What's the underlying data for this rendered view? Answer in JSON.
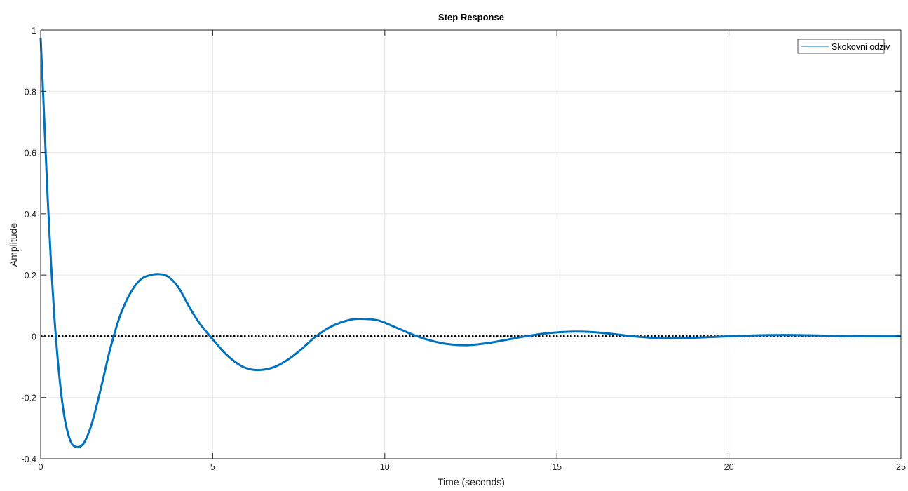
{
  "chart_data": {
    "type": "line",
    "title": "Step Response",
    "xlabel": "Time (seconds)",
    "ylabel": "Amplitude",
    "xlim": [
      0,
      25
    ],
    "ylim": [
      -0.4,
      1
    ],
    "xticks": [
      0,
      5,
      10,
      15,
      20,
      25
    ],
    "xtick_labels": [
      "0",
      "5",
      "10",
      "15",
      "20",
      "25"
    ],
    "yticks": [
      -0.4,
      -0.2,
      0,
      0.2,
      0.4,
      0.6,
      0.8,
      1
    ],
    "ytick_labels": [
      "-0.4",
      "-0.2",
      "0",
      "0.2",
      "0.4",
      "0.6",
      "0.8",
      "1"
    ],
    "grid": true,
    "legend_position": "top-right",
    "series": [
      {
        "name": "Skokovni odziv",
        "color": "#0072BD",
        "x": [
          0,
          0.1,
          0.2,
          0.3,
          0.4,
          0.5,
          0.6,
          0.7,
          0.8,
          0.9,
          1.0,
          1.15,
          1.3,
          1.5,
          1.75,
          2.0,
          2.2,
          2.35,
          2.6,
          2.9,
          3.2,
          3.45,
          3.7,
          4.0,
          4.3,
          4.6,
          5.0,
          5.4,
          5.8,
          6.1,
          6.4,
          6.8,
          7.2,
          7.6,
          8.0,
          8.5,
          9.0,
          9.35,
          9.8,
          10.3,
          10.8,
          11.3,
          11.8,
          12.4,
          13.0,
          13.6,
          14.2,
          14.8,
          15.4,
          16.0,
          16.6,
          17.2,
          17.8,
          18.5,
          19.2,
          20.0,
          20.8,
          21.6,
          22.4,
          23.2,
          24.0,
          25.0
        ],
        "y": [
          0.975,
          0.72,
          0.46,
          0.24,
          0.06,
          -0.08,
          -0.19,
          -0.27,
          -0.32,
          -0.35,
          -0.36,
          -0.36,
          -0.34,
          -0.28,
          -0.17,
          -0.05,
          0.03,
          0.08,
          0.14,
          0.185,
          0.2,
          0.203,
          0.195,
          0.16,
          0.1,
          0.045,
          -0.01,
          -0.06,
          -0.095,
          -0.108,
          -0.11,
          -0.1,
          -0.075,
          -0.04,
          0.0,
          0.035,
          0.054,
          0.057,
          0.052,
          0.03,
          0.006,
          -0.013,
          -0.025,
          -0.029,
          -0.022,
          -0.01,
          0.002,
          0.011,
          0.015,
          0.014,
          0.008,
          0.0,
          -0.005,
          -0.006,
          -0.004,
          0.0,
          0.003,
          0.004,
          0.003,
          0.001,
          0.0,
          0.0
        ]
      }
    ],
    "reference_line": {
      "y": 0,
      "style": "dotted",
      "color": "#000000"
    }
  }
}
